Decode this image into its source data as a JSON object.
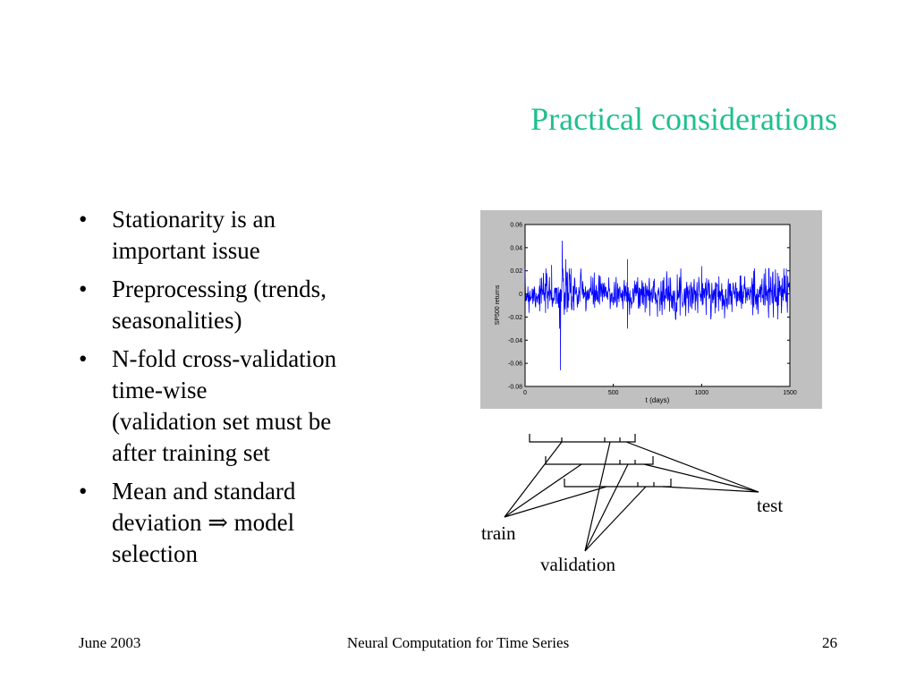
{
  "slide": {
    "title": "Practical considerations",
    "bullets": [
      {
        "marker": "•",
        "text": "Stationarity is an\nimportant issue"
      },
      {
        "marker": "•",
        "text": "Preprocessing (trends,\nseasonalities)"
      },
      {
        "marker": "•",
        "text": "N-fold cross-validation\ntime-wise\n(validation set must be\nafter training set"
      },
      {
        "marker": "•",
        "text": "Mean and standard\ndeviation ⇒ model\nselection"
      }
    ],
    "diagram_labels": {
      "train": "train",
      "validation": "validation",
      "test": "test"
    },
    "footer": {
      "left": "June 2003",
      "center": "Neural Computation for Time Series",
      "right": "26"
    },
    "colors": {
      "title": "#1fbf8f",
      "series": "#0000ff",
      "plot_bg": "#c0c0c0"
    }
  },
  "chart_data": {
    "type": "line",
    "xlabel": "t (days)",
    "ylabel": "SP500 returns",
    "xlim": [
      0,
      1500
    ],
    "ylim": [
      -0.08,
      0.06
    ],
    "xticks": [
      0,
      500,
      1000,
      1500
    ],
    "xtick_labels": [
      "0",
      "500",
      "1000",
      "1500"
    ],
    "yticks": [
      0.06,
      0.04,
      0.02,
      0,
      -0.02,
      -0.04,
      -0.06,
      -0.08
    ],
    "ytick_labels": [
      "0.06",
      "0.04",
      "0.02",
      "0",
      "-0.02",
      "-0.04",
      "-0.06",
      "-0.08"
    ],
    "grid": false,
    "noise_std": 0.008,
    "spikes": [
      {
        "x": 150,
        "y": 0.025
      },
      {
        "x": 195,
        "y": -0.03
      },
      {
        "x": 200,
        "y": -0.066
      },
      {
        "x": 210,
        "y": 0.046
      },
      {
        "x": 230,
        "y": 0.03
      },
      {
        "x": 260,
        "y": 0.022
      },
      {
        "x": 580,
        "y": 0.03
      },
      {
        "x": 580,
        "y": -0.03
      },
      {
        "x": 1000,
        "y": 0.024
      },
      {
        "x": 1295,
        "y": 0.02
      },
      {
        "x": 1380,
        "y": 0.022
      },
      {
        "x": 1480,
        "y": 0.022
      }
    ]
  }
}
